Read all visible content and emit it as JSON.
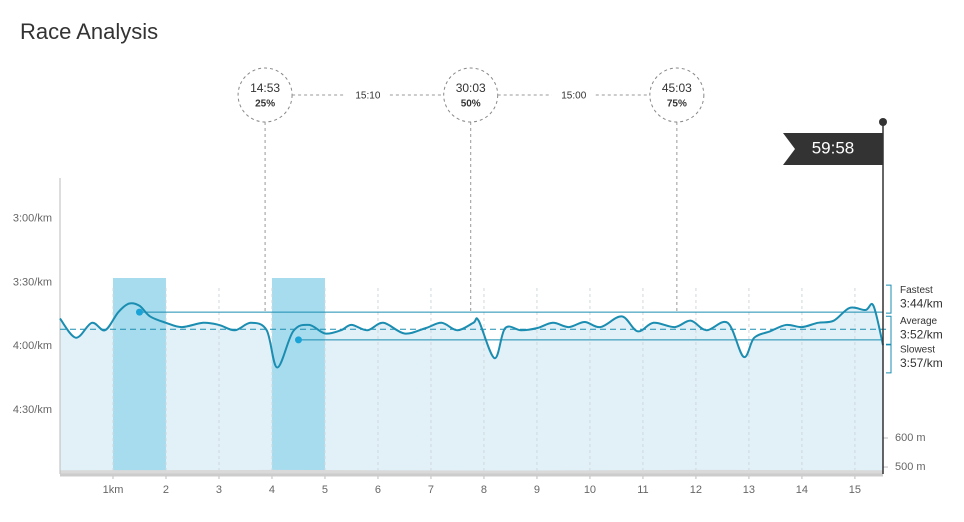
{
  "chart_data": {
    "type": "line",
    "title": "Race Analysis",
    "color": "#1b8db0",
    "x": [
      0,
      0.3,
      0.6,
      0.85,
      1.1,
      1.3,
      1.5,
      1.7,
      2.0,
      2.3,
      2.7,
      3.0,
      3.3,
      3.6,
      3.9,
      4.1,
      4.4,
      4.7,
      5.0,
      5.3,
      5.5,
      5.8,
      6.1,
      6.5,
      6.9,
      7.2,
      7.5,
      7.8,
      7.9,
      8.2,
      8.4,
      8.7,
      9.0,
      9.3,
      9.6,
      9.9,
      10.2,
      10.6,
      10.9,
      11.2,
      11.6,
      11.9,
      12.2,
      12.6,
      12.9,
      13.1,
      13.4,
      13.7,
      14.0,
      14.3,
      14.6,
      14.9,
      15.2,
      15.35,
      15.53
    ],
    "values": [
      227,
      236,
      229,
      232.5,
      224,
      220,
      221,
      226,
      229,
      231,
      229,
      230,
      232.5,
      229,
      232.5,
      250,
      233,
      230,
      234,
      232.5,
      230,
      232.5,
      229,
      234,
      231.5,
      229,
      232.5,
      229,
      228,
      245.6,
      231.5,
      232.5,
      231.5,
      229,
      231,
      228.6,
      231,
      226,
      233,
      229,
      231,
      228,
      232.5,
      229,
      245,
      236,
      233,
      230,
      231,
      229,
      228,
      222,
      223,
      221,
      239.5
    ],
    "elevation": {
      "axis": "y2",
      "x": [
        0,
        4,
        8,
        12,
        15.53
      ],
      "values": [
        489,
        490,
        488,
        490,
        489
      ]
    },
    "xlim": [
      0,
      15.53
    ],
    "xticks": [
      {
        "value": 1,
        "label": "1km"
      },
      2,
      3,
      4,
      5,
      6,
      7,
      8,
      9,
      10,
      11,
      12,
      13,
      14,
      15
    ],
    "ylim": [
      300,
      161
    ],
    "yticks": [
      {
        "value": 180,
        "label": "3:00/km"
      },
      {
        "value": 210,
        "label": "3:30/km"
      },
      {
        "value": 240,
        "label": "4:00/km"
      },
      {
        "value": 270,
        "label": "4:30/km"
      }
    ],
    "y2lim": [
      476,
      1496
    ],
    "y2ticks": [
      {
        "value": 500,
        "label": "500 m"
      },
      {
        "value": 600,
        "label": "600 m"
      }
    ],
    "grid": true,
    "splits": [
      {
        "time": "14:53",
        "percent": "25%",
        "km": 3.87
      },
      {
        "time": "30:03",
        "percent": "50%",
        "km": 7.75
      },
      {
        "time": "45:03",
        "percent": "75%",
        "km": 11.64
      }
    ],
    "split_intervals": [
      "15:10",
      "15:00"
    ],
    "finish_time": "59:58",
    "fastest": {
      "label": "Fastest",
      "pace": {
        "value": 224,
        "label": "3:44/km"
      },
      "km": [
        1,
        2
      ]
    },
    "average": {
      "label": "Average",
      "pace": {
        "value": 232,
        "label": "3:52/km"
      }
    },
    "slowest": {
      "label": "Slowest",
      "pace": {
        "value": 237,
        "label": "3:57/km"
      },
      "km": [
        4,
        5
      ]
    }
  }
}
